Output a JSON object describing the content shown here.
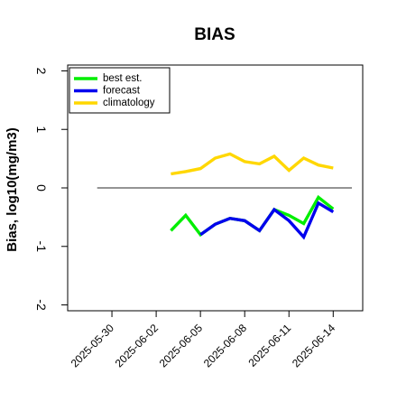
{
  "chart_data": {
    "type": "line",
    "title": "BIAS",
    "xlabel": "",
    "ylabel": "Bias, log10(mg/m3)",
    "x_axis": {
      "kind": "date",
      "range": [
        "2025-05-27",
        "2025-06-16"
      ],
      "ticks": [
        "2025-05-30",
        "2025-06-02",
        "2025-06-05",
        "2025-06-08",
        "2025-06-11",
        "2025-06-14"
      ],
      "highlighted_tick": "2025-06-05",
      "highlight_color": "#228b22"
    },
    "y_axis": {
      "range": [
        -2.1,
        2.1
      ],
      "ticks": [
        -2,
        -1,
        0,
        1,
        2
      ]
    },
    "reference_line": 0,
    "grid": false,
    "legend_position": "top-left",
    "x": [
      "2025-06-03",
      "2025-06-04",
      "2025-06-05",
      "2025-06-06",
      "2025-06-07",
      "2025-06-08",
      "2025-06-09",
      "2025-06-10",
      "2025-06-11",
      "2025-06-12",
      "2025-06-13",
      "2025-06-14"
    ],
    "series": [
      {
        "name": "best est.",
        "color": "#00ee00",
        "values": [
          -0.73,
          -0.47,
          -0.8,
          -0.62,
          -0.52,
          -0.56,
          -0.73,
          -0.37,
          -0.47,
          -0.61,
          -0.16,
          -0.36
        ]
      },
      {
        "name": "forecast",
        "color": "#0000ee",
        "values": [
          null,
          null,
          -0.8,
          -0.62,
          -0.52,
          -0.56,
          -0.73,
          -0.37,
          -0.56,
          -0.84,
          -0.26,
          -0.41
        ]
      },
      {
        "name": "climatology",
        "color": "#ffd700",
        "values": [
          0.24,
          0.28,
          0.33,
          0.51,
          0.58,
          0.45,
          0.41,
          0.54,
          0.3,
          0.51,
          0.39,
          0.34
        ]
      }
    ]
  }
}
